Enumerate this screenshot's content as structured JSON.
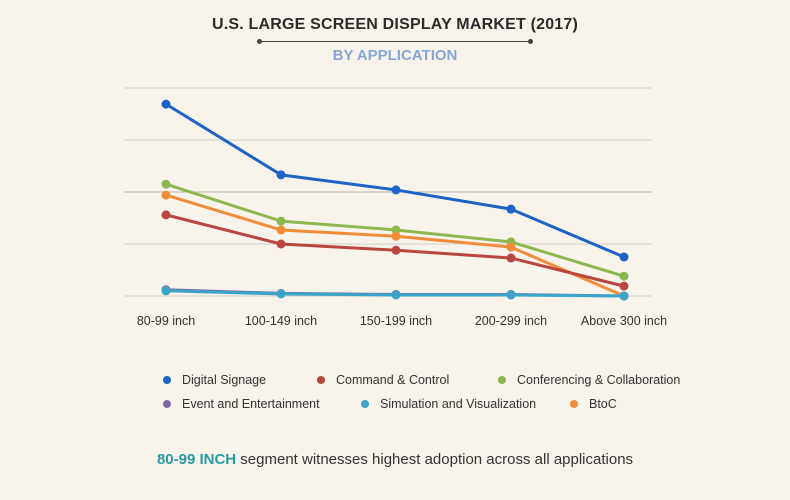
{
  "chart_data": {
    "type": "line",
    "title": "U.S. LARGE SCREEN DISPLAY MARKET (2017)",
    "subtitle": "BY APPLICATION",
    "categories": [
      "80-99 inch",
      "100-149 inch",
      "150-199 inch",
      "200-299 inch",
      "Above 300 inch"
    ],
    "ylim": [
      0,
      4
    ],
    "grid": true,
    "legend_position": "bottom",
    "series": [
      {
        "name": "Digital Signage",
        "color": "#1f63c6",
        "values": [
          3.69,
          2.33,
          2.04,
          1.67,
          0.75
        ]
      },
      {
        "name": "Command & Control",
        "color": "#b8473f",
        "values": [
          1.56,
          1.0,
          0.88,
          0.73,
          0.19
        ]
      },
      {
        "name": "Conferencing & Collaboration",
        "color": "#8db84f",
        "values": [
          2.15,
          1.44,
          1.27,
          1.04,
          0.38
        ]
      },
      {
        "name": "Event and Entertainment",
        "color": "#7d6aa8",
        "values": [
          0.12,
          0.05,
          0.03,
          0.03,
          0.0
        ]
      },
      {
        "name": "Simulation and Visualization",
        "color": "#3aa5c6",
        "values": [
          0.1,
          0.04,
          0.02,
          0.02,
          0.0
        ]
      },
      {
        "name": "BtoC",
        "color": "#f08c3a",
        "values": [
          1.94,
          1.27,
          1.15,
          0.94,
          0.0
        ]
      }
    ]
  },
  "footer": {
    "highlight": "80-99 INCH",
    "text": " segment witnesses highest adoption across all applications"
  }
}
